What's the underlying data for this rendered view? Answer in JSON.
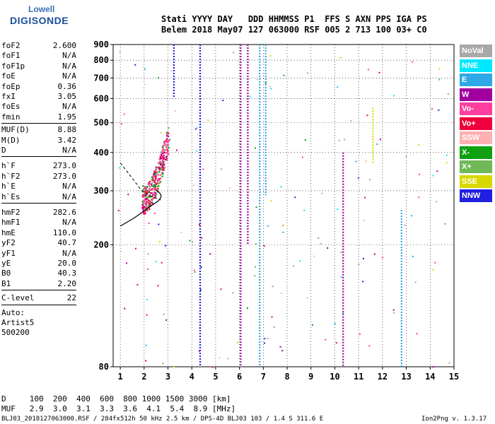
{
  "logo": {
    "top": "Lowell",
    "main": "DIGISONDE"
  },
  "header": {
    "line1": "Stati YYYY DAY   DDD HHMMSS P1  FFS S AXN PPS IGA PS",
    "line2": "Belem 2018 May07 127 063000 RSF 005 2 713 100 03+ C0"
  },
  "params_group1": [
    {
      "k": "foF2",
      "v": "2.600"
    },
    {
      "k": "foF1",
      "v": "N/A"
    },
    {
      "k": "foF1p",
      "v": "N/A"
    },
    {
      "k": "foE",
      "v": "N/A"
    },
    {
      "k": "foEp",
      "v": "0.36"
    },
    {
      "k": "fxI",
      "v": "3.05"
    },
    {
      "k": "foEs",
      "v": "N/A"
    },
    {
      "k": "fmin",
      "v": "1.95"
    }
  ],
  "params_group2": [
    {
      "k": "MUF(D)",
      "v": "8.88"
    },
    {
      "k": "M(D)",
      "v": "3.42"
    },
    {
      "k": "D",
      "v": "N/A"
    }
  ],
  "params_group3": [
    {
      "k": "h`F",
      "v": "273.0"
    },
    {
      "k": "h`F2",
      "v": "273.0"
    },
    {
      "k": "h`E",
      "v": "N/A"
    },
    {
      "k": "h`Es",
      "v": "N/A"
    }
  ],
  "params_group4": [
    {
      "k": "hmF2",
      "v": "282.6"
    },
    {
      "k": "hmF1",
      "v": "N/A"
    },
    {
      "k": "hmE",
      "v": "110.0"
    },
    {
      "k": "yF2",
      "v": "40.7"
    },
    {
      "k": "yF1",
      "v": "N/A"
    },
    {
      "k": "yE",
      "v": "20.0"
    },
    {
      "k": "B0",
      "v": "40.3"
    },
    {
      "k": "B1",
      "v": "2.20"
    }
  ],
  "clevel": {
    "k": "C-level",
    "v": "22"
  },
  "auto": {
    "line1": "Auto:",
    "line2": "Artist5",
    "line3": "500200"
  },
  "legend": [
    {
      "label": "NoVal",
      "color": "#a8a8a8"
    },
    {
      "label": "NNE",
      "color": "#00e8ff"
    },
    {
      "label": "E",
      "color": "#2fa8e8"
    },
    {
      "label": "W",
      "color": "#a000a0"
    },
    {
      "label": "Vo-",
      "color": "#ff3fa0"
    },
    {
      "label": "Vo+",
      "color": "#f0003c"
    },
    {
      "label": "SSW",
      "color": "#ffb0b0"
    },
    {
      "label": "X-",
      "color": "#10a010"
    },
    {
      "label": "X+",
      "color": "#70b858"
    },
    {
      "label": "SSE",
      "color": "#d8d800"
    },
    {
      "label": "NNW",
      "color": "#2020e0"
    }
  ],
  "footer": {
    "d_row": "D     100  200  400  600  800 1000 1500 3000 [km]",
    "muf_row": "MUF   2.9  3.0  3.1  3.3  3.6  4.1  5.4  8.9 [MHz]",
    "file": "BLJ03_2018127063000.RSF / 284fx512h 50 kHz 2.5 km / DPS-4D BLJ03 103 / 1.4 S 311.6 E",
    "version": "Ion2Png v. 1.3.17"
  },
  "chart_data": {
    "type": "scatter",
    "xlabel": "",
    "ylabel": "",
    "xlim": [
      0.7,
      15
    ],
    "ylim": [
      80,
      900
    ],
    "x_ticks": [
      1,
      2,
      3,
      4,
      5,
      6,
      7,
      8,
      9,
      10,
      11,
      12,
      13,
      14,
      15
    ],
    "y_ticks": [
      80,
      200,
      300,
      400,
      500,
      600,
      700,
      800,
      900
    ],
    "y_scale": "log",
    "grid": true,
    "legend_position": "right",
    "vertical_traces": [
      {
        "x": 4.35,
        "y0": 80,
        "y1": 900,
        "color": "#2020e0"
      },
      {
        "x": 6.05,
        "y0": 80,
        "y1": 900,
        "color": "#a000a0"
      },
      {
        "x": 6.35,
        "y0": 200,
        "y1": 900,
        "color": "#a000a0"
      },
      {
        "x": 6.85,
        "y0": 80,
        "y1": 900,
        "color": "#2fa8e8"
      },
      {
        "x": 7.1,
        "y0": 290,
        "y1": 900,
        "color": "#2fa8e8"
      },
      {
        "x": 3.25,
        "y0": 600,
        "y1": 900,
        "color": "#2020e0"
      },
      {
        "x": 10.35,
        "y0": 80,
        "y1": 400,
        "color": "#a000a0"
      },
      {
        "x": 11.6,
        "y0": 370,
        "y1": 560,
        "color": "#d8d800"
      },
      {
        "x": 12.8,
        "y0": 80,
        "y1": 260,
        "color": "#2fa8e8"
      }
    ],
    "trace_cluster": {
      "x_range": [
        1.9,
        3.0
      ],
      "y_range": [
        270,
        520
      ],
      "series": [
        "Vo-",
        "Vo+",
        "X-",
        "X+",
        "W"
      ]
    },
    "profile_curve": {
      "points": [
        [
          1.0,
          370
        ],
        [
          1.5,
          330
        ],
        [
          1.9,
          300
        ],
        [
          2.2,
          290
        ],
        [
          2.7,
          280
        ]
      ]
    },
    "profile_lower": {
      "points": [
        [
          1.0,
          230
        ],
        [
          1.6,
          245
        ],
        [
          2.2,
          265
        ],
        [
          2.6,
          278
        ],
        [
          2.7,
          285
        ]
      ]
    }
  }
}
